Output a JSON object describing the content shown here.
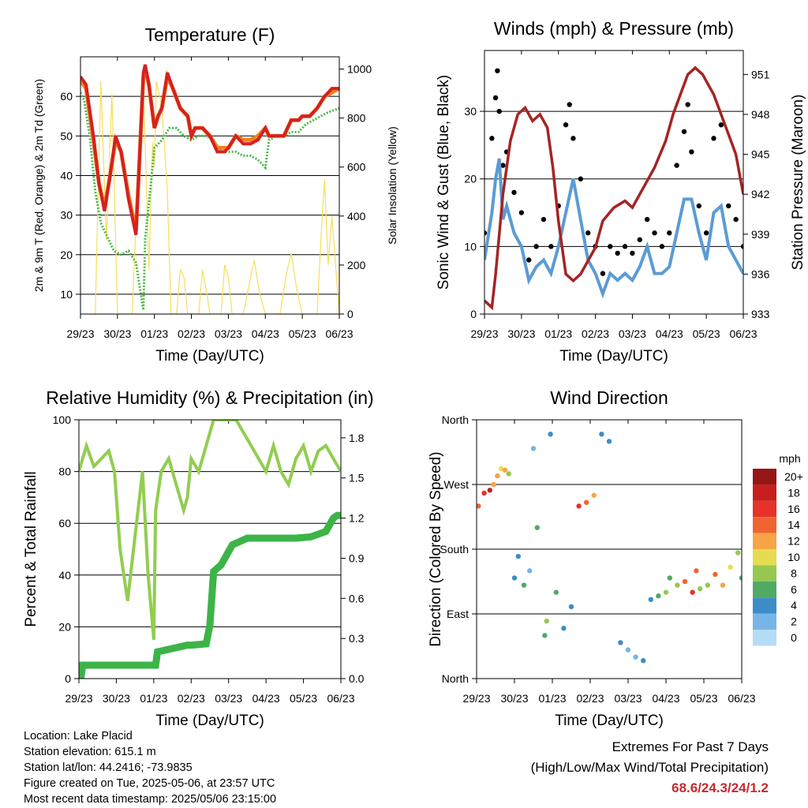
{
  "time_ticks": [
    "29/23",
    "30/23",
    "01/23",
    "02/23",
    "03/23",
    "04/23",
    "05/23",
    "06/23"
  ],
  "colors": {
    "temp_2m": "#d62020",
    "temp_9m": "#f08020",
    "dewpoint": "#4ab848",
    "solar": "#f7de5a",
    "wind": "#5b9bd5",
    "gust": "#000000",
    "pressure": "#a52424",
    "rh": "#92cd50",
    "precip": "#3cb448",
    "extremes": "#c8282e"
  },
  "chart_data": [
    {
      "id": "temperature",
      "type": "line",
      "title": "Temperature (F)",
      "xlabel": "Time (Day/UTC)",
      "ylabel_left": "2m & 9m T (Red, Orange) & 2m Td (Green)",
      "ylabel_right": "Solar Insolation (Yellow)",
      "ylim_left": [
        5,
        70
      ],
      "ylim_right": [
        0,
        1050
      ],
      "yticks_left": [
        "10",
        "20",
        "30",
        "40",
        "50",
        "60"
      ],
      "yticks_right": [
        "0",
        "200",
        "400",
        "600",
        "800",
        "1000"
      ],
      "grid": true,
      "series": [
        {
          "name": "2m T",
          "x": [
            0,
            0.15,
            0.35,
            0.5,
            0.65,
            0.8,
            0.95,
            1.1,
            1.3,
            1.5,
            1.6,
            1.7,
            1.75,
            1.85,
            2.0,
            2.1,
            2.2,
            2.35,
            2.5,
            2.7,
            2.9,
            3.0,
            3.1,
            3.3,
            3.5,
            3.7,
            3.9,
            4.0,
            4.2,
            4.4,
            4.6,
            4.8,
            5.0,
            5.1,
            5.3,
            5.5,
            5.7,
            5.9,
            6.0,
            6.2,
            6.4,
            6.6,
            6.8,
            7.0
          ],
          "y": [
            65,
            63,
            50,
            38,
            31,
            40,
            50,
            46,
            34,
            25,
            45,
            66,
            68,
            63,
            52,
            55,
            57,
            66,
            62,
            57,
            55,
            50,
            52,
            52,
            50,
            46,
            46,
            47,
            50,
            48,
            48,
            49,
            52,
            50,
            50,
            50,
            54,
            54,
            55,
            55,
            57,
            60,
            62,
            62
          ]
        },
        {
          "name": "9m T",
          "x": [
            0,
            0.15,
            0.35,
            0.5,
            0.65,
            0.8,
            0.95,
            1.1,
            1.3,
            1.5,
            1.6,
            1.7,
            1.75,
            1.85,
            2.0,
            2.1,
            2.2,
            2.35,
            2.5,
            2.7,
            2.9,
            3.0,
            3.1,
            3.3,
            3.5,
            3.7,
            3.9,
            4.0,
            4.2,
            4.4,
            4.6,
            4.8,
            5.0,
            5.1,
            5.3,
            5.5,
            5.7,
            5.9,
            6.0,
            6.2,
            6.4,
            6.6,
            6.8,
            7.0
          ],
          "y": [
            64,
            62,
            49,
            38,
            32,
            40,
            49,
            46,
            35,
            26,
            45,
            65,
            67,
            63,
            52,
            55,
            57,
            65,
            62,
            57,
            55,
            50,
            52,
            52,
            50,
            47,
            47,
            47,
            50,
            49,
            49,
            50,
            52,
            50,
            50,
            50,
            54,
            54,
            55,
            55,
            57,
            60,
            61,
            62
          ]
        },
        {
          "name": "2m Td",
          "x": [
            0,
            0.1,
            0.25,
            0.4,
            0.55,
            0.7,
            0.9,
            1.1,
            1.3,
            1.5,
            1.6,
            1.7,
            1.75,
            1.85,
            2.0,
            2.2,
            2.4,
            2.6,
            2.8,
            3.0,
            3.2,
            3.4,
            3.6,
            3.8,
            4.0,
            4.2,
            4.4,
            4.6,
            4.8,
            5.0,
            5.1,
            5.3,
            5.5,
            5.7,
            5.9,
            6.1,
            6.3,
            6.5,
            6.7,
            7.0
          ],
          "y": [
            61,
            59,
            50,
            36,
            28,
            25,
            21,
            20,
            21,
            18,
            12,
            6,
            24,
            33,
            47,
            49,
            52,
            52,
            50,
            49,
            50,
            50,
            49,
            46,
            46,
            46,
            45,
            45,
            44,
            42,
            49,
            50,
            50,
            51,
            51,
            53,
            54,
            55,
            56,
            57
          ]
        },
        {
          "name": "Solar",
          "axis": "right",
          "x": [
            0.4,
            0.55,
            0.7,
            0.85,
            1.0,
            1.4,
            1.55,
            1.7,
            1.85,
            1.95,
            2.0,
            2.05,
            2.2,
            2.35,
            2.45,
            2.6,
            2.7,
            2.8,
            2.9,
            3.2,
            3.3,
            3.4,
            3.5,
            3.8,
            3.9,
            4.0,
            4.1,
            4.4,
            4.6,
            4.7,
            4.85,
            5.0,
            5.4,
            5.55,
            5.7,
            5.85,
            6.0,
            6.4,
            6.5,
            6.6,
            6.7,
            6.8,
            6.9,
            7.0
          ],
          "y": [
            0,
            950,
            300,
            900,
            0,
            0,
            550,
            950,
            180,
            700,
            600,
            950,
            850,
            500,
            0,
            0,
            180,
            150,
            0,
            0,
            180,
            100,
            0,
            0,
            200,
            150,
            0,
            0,
            150,
            220,
            80,
            0,
            0,
            150,
            250,
            100,
            0,
            0,
            300,
            550,
            200,
            400,
            200,
            0
          ]
        }
      ]
    },
    {
      "id": "winds",
      "type": "scatter",
      "title": "Winds (mph) & Pressure (mb)",
      "xlabel": "Time (Day/UTC)",
      "ylabel_left": "Sonic Wind & Gust (Blue, Black)",
      "ylabel_right": "Station Pressure (Maroon)",
      "ylim_left": [
        0,
        39
      ],
      "ylim_right": [
        933,
        952.8
      ],
      "yticks_left": [
        "0",
        "10",
        "20",
        "30"
      ],
      "yticks_right": [
        "933",
        "936",
        "939",
        "942",
        "945",
        "948",
        "951"
      ],
      "grid": true,
      "series": [
        {
          "name": "Wind",
          "x": [
            0,
            0.2,
            0.3,
            0.4,
            0.5,
            0.6,
            0.8,
            1.0,
            1.2,
            1.4,
            1.6,
            1.8,
            2.0,
            2.2,
            2.4,
            2.6,
            2.8,
            3.0,
            3.2,
            3.4,
            3.6,
            3.8,
            4.0,
            4.2,
            4.4,
            4.6,
            4.8,
            5.0,
            5.2,
            5.4,
            5.6,
            5.8,
            6.0,
            6.2,
            6.4,
            6.6,
            6.8,
            7.0
          ],
          "y": [
            8,
            15,
            20,
            23,
            14,
            16,
            12,
            10,
            5,
            7,
            8,
            6,
            10,
            15,
            20,
            14,
            8,
            6,
            3,
            6,
            5,
            6,
            5,
            7,
            10,
            6,
            6,
            7,
            12,
            17,
            17,
            12,
            8,
            15,
            16,
            10,
            8,
            6
          ]
        },
        {
          "name": "Gust",
          "x": [
            0,
            0.2,
            0.3,
            0.35,
            0.4,
            0.5,
            0.6,
            0.8,
            1.0,
            1.2,
            1.4,
            1.6,
            1.8,
            2.0,
            2.2,
            2.3,
            2.4,
            2.6,
            2.8,
            3.0,
            3.2,
            3.4,
            3.6,
            3.8,
            4.0,
            4.2,
            4.4,
            4.6,
            4.8,
            5.0,
            5.2,
            5.4,
            5.5,
            5.6,
            5.8,
            6.0,
            6.2,
            6.4,
            6.6,
            6.8,
            7.0
          ],
          "y": [
            12,
            26,
            32,
            36,
            30,
            22,
            24,
            18,
            15,
            8,
            10,
            14,
            10,
            16,
            28,
            31,
            26,
            20,
            12,
            10,
            6,
            10,
            9,
            10,
            9,
            11,
            14,
            12,
            10,
            12,
            22,
            27,
            31,
            24,
            16,
            12,
            26,
            28,
            16,
            14,
            10
          ]
        },
        {
          "name": "Pressure",
          "axis": "right",
          "x": [
            0,
            0.2,
            0.3,
            0.5,
            0.7,
            0.9,
            1.1,
            1.3,
            1.5,
            1.7,
            1.85,
            2.0,
            2.2,
            2.4,
            2.6,
            2.8,
            3.0,
            3.2,
            3.5,
            3.8,
            4.0,
            4.3,
            4.6,
            4.9,
            5.1,
            5.3,
            5.5,
            5.7,
            5.9,
            6.0,
            6.2,
            6.4,
            6.6,
            6.8,
            7.0
          ],
          "y": [
            934,
            933.5,
            936,
            942,
            946,
            948,
            948.5,
            947.5,
            948,
            947,
            944,
            940,
            936,
            935.5,
            936,
            937,
            938,
            940,
            941,
            941.5,
            941,
            942.5,
            944,
            946,
            948,
            949.5,
            951,
            951.5,
            951,
            950.5,
            949.5,
            948,
            946.5,
            945,
            942
          ]
        }
      ]
    },
    {
      "id": "humidity",
      "type": "line",
      "title": "Relative Humidity (%) & Precipitation (in)",
      "xlabel": "Time (Day/UTC)",
      "ylabel_left": "Percent & Total Rainfall",
      "ylim_left": [
        0,
        100
      ],
      "ylim_right": [
        0,
        1.935
      ],
      "yticks_left": [
        "0",
        "20",
        "40",
        "60",
        "80",
        "100"
      ],
      "yticks_right": [
        "0.0",
        "0.3",
        "0.6",
        "0.9",
        "1.2",
        "1.5",
        "1.8"
      ],
      "grid": true,
      "series": [
        {
          "name": "RH",
          "x": [
            0,
            0.1,
            0.2,
            0.4,
            0.6,
            0.8,
            0.95,
            1.1,
            1.3,
            1.5,
            1.7,
            1.85,
            2.0,
            2.05,
            2.2,
            2.4,
            2.6,
            2.8,
            2.9,
            3.0,
            3.2,
            3.4,
            3.6,
            3.8,
            4.0,
            4.2,
            4.4,
            4.6,
            4.8,
            5.0,
            5.2,
            5.4,
            5.6,
            5.8,
            6.0,
            6.2,
            6.4,
            6.6,
            6.8,
            7.0
          ],
          "y": [
            80,
            85,
            90,
            82,
            85,
            88,
            80,
            50,
            30,
            55,
            80,
            40,
            15,
            65,
            80,
            85,
            75,
            65,
            70,
            85,
            80,
            90,
            100,
            100,
            100,
            100,
            95,
            90,
            85,
            80,
            90,
            80,
            75,
            85,
            90,
            80,
            88,
            90,
            85,
            80
          ]
        },
        {
          "name": "Precip",
          "axis": "right",
          "x": [
            0,
            0.05,
            0.1,
            1.9,
            2.05,
            2.1,
            2.9,
            3.0,
            3.4,
            3.5,
            3.6,
            3.8,
            4.0,
            4.1,
            4.5,
            5.0,
            5.6,
            5.8,
            6.2,
            6.6,
            6.8,
            6.9,
            7.0
          ],
          "y": [
            0,
            0,
            0.1,
            0.1,
            0.1,
            0.2,
            0.25,
            0.25,
            0.26,
            0.4,
            0.8,
            0.85,
            0.95,
            1.0,
            1.05,
            1.05,
            1.05,
            1.05,
            1.06,
            1.1,
            1.2,
            1.22,
            1.22
          ]
        }
      ]
    },
    {
      "id": "direction",
      "type": "scatter",
      "title": "Wind Direction",
      "xlabel": "Time (Day/UTC)",
      "ylabel_left": "Direction (Colored By Speed)",
      "ylim_left": [
        0,
        360
      ],
      "yticks_left": [
        "North",
        "East",
        "South",
        "West",
        "North"
      ],
      "grid": true,
      "colorbar": {
        "unit": "mph",
        "labels": [
          "20+",
          "18",
          "16",
          "14",
          "12",
          "10",
          "8",
          "6",
          "4",
          "2",
          "0"
        ],
        "colors": [
          "#961616",
          "#c81e1e",
          "#e63228",
          "#f06432",
          "#f5a546",
          "#e6dc50",
          "#96c850",
          "#50aa64",
          "#3c8cc8",
          "#78b4e6",
          "#b4dcf5"
        ]
      },
      "series": [
        {
          "name": "Direction",
          "x": [
            0.05,
            0.2,
            0.35,
            0.45,
            0.55,
            0.65,
            0.75,
            0.85,
            1.0,
            1.1,
            1.25,
            1.4,
            1.5,
            1.6,
            1.8,
            1.85,
            1.95,
            2.1,
            2.3,
            2.5,
            2.7,
            2.9,
            3.1,
            3.3,
            3.5,
            3.8,
            4.0,
            4.2,
            4.4,
            4.6,
            4.8,
            5.0,
            5.1,
            5.3,
            5.5,
            5.7,
            5.8,
            5.9,
            6.1,
            6.3,
            6.5,
            6.7,
            6.9,
            7.0
          ],
          "y": [
            240,
            258,
            262,
            270,
            282,
            292,
            290,
            285,
            140,
            170,
            130,
            150,
            320,
            210,
            60,
            80,
            340,
            120,
            70,
            100,
            240,
            245,
            255,
            340,
            330,
            50,
            40,
            30,
            25,
            110,
            115,
            120,
            140,
            130,
            135,
            120,
            150,
            125,
            130,
            145,
            130,
            155,
            175,
            140
          ],
          "speed": [
            14,
            16,
            18,
            12,
            12,
            10,
            12,
            8,
            4,
            4,
            6,
            2,
            2,
            6,
            6,
            8,
            4,
            6,
            4,
            4,
            16,
            14,
            12,
            4,
            4,
            4,
            2,
            2,
            4,
            4,
            6,
            8,
            6,
            8,
            14,
            16,
            14,
            8,
            8,
            14,
            12,
            10,
            8,
            6
          ]
        }
      ]
    }
  ],
  "info": {
    "location": "Location: Lake Placid",
    "elevation": "Station elevation: 615.1 m",
    "latlon": "Station lat/lon: 44.2416; -73.9835",
    "created": "Figure created on Tue, 2025-05-06, at 23:57 UTC",
    "latest": "Most recent data timestamp: 2025/05/06 23:15:00",
    "extremes_title": "Extremes For Past 7 Days",
    "extremes_sub": "(High/Low/Max Wind/Total Precipitation)",
    "extremes_values": "68.6/24.3/24/1.2"
  }
}
